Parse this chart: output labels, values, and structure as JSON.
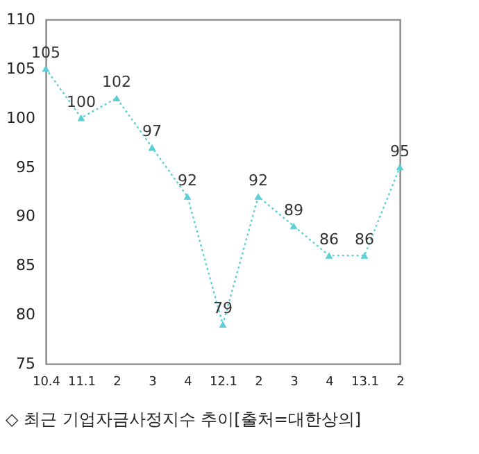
{
  "chart_data": {
    "type": "line",
    "categories": [
      "10.4",
      "11.1",
      "2",
      "3",
      "4",
      "12.1",
      "2",
      "3",
      "4",
      "13.1",
      "2"
    ],
    "series": [
      {
        "color": "#5ccfd6",
        "values": [
          105,
          100,
          102,
          97,
          92,
          79,
          92,
          89,
          86,
          86,
          95
        ]
      }
    ],
    "ylim": [
      75,
      110
    ],
    "yticks": [
      75,
      80,
      85,
      90,
      95,
      100,
      105,
      110
    ],
    "grid": false,
    "marker": "triangle",
    "line_style": "dotted",
    "data_labels": true,
    "annotations": [
      "◇ 최근 기업자금사정지수 추이[출처=대한상의]"
    ]
  }
}
